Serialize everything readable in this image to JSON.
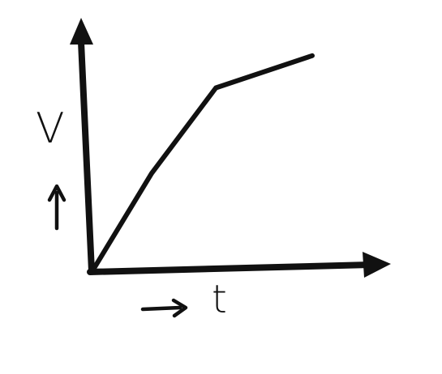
{
  "chart_data": {
    "type": "line",
    "title": "",
    "xlabel": "t",
    "ylabel": "V",
    "series": [
      {
        "name": "V vs t",
        "x": [
          0,
          0.2,
          0.42,
          0.75
        ],
        "y": [
          0,
          0.45,
          0.85,
          1.0
        ]
      }
    ],
    "xlim": [
      0,
      1
    ],
    "ylim": [
      0,
      1.2
    ],
    "grid": false,
    "legend": "none",
    "ticks": "none",
    "color": "#111111"
  }
}
